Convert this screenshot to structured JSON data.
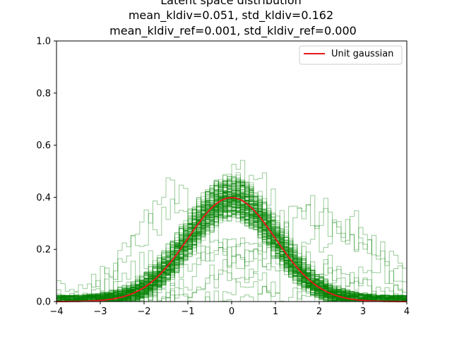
{
  "chart_data": {
    "type": "line",
    "title_lines": [
      "Latent space distribution",
      "mean_kldiv=0.051, std_kldiv=0.162",
      "mean_kldiv_ref=0.001, std_kldiv_ref=0.000"
    ],
    "xlabel": "",
    "ylabel": "",
    "xlim": [
      -4,
      4
    ],
    "ylim": [
      0,
      1.0
    ],
    "x_ticks": [
      "−4",
      "−3",
      "−2",
      "−1",
      "0",
      "1",
      "2",
      "3",
      "4"
    ],
    "y_ticks": [
      "0.0",
      "0.2",
      "0.4",
      "0.6",
      "0.8",
      "1.0"
    ],
    "legend_position": "top-right",
    "colors": {
      "unit_gaussian": "#e41a1c",
      "histograms": "#008000"
    },
    "series": [
      {
        "name": "Unit gaussian",
        "x": [
          -4.0,
          -3.5,
          -3.0,
          -2.5,
          -2.0,
          -1.5,
          -1.0,
          -0.5,
          0.0,
          0.5,
          1.0,
          1.5,
          2.0,
          2.5,
          3.0,
          3.5,
          4.0
        ],
        "y": [
          0.0001,
          0.0009,
          0.0044,
          0.0175,
          0.054,
          0.1295,
          0.242,
          0.352,
          0.399,
          0.352,
          0.242,
          0.1295,
          0.054,
          0.0175,
          0.0044,
          0.0009,
          0.0001
        ]
      }
    ],
    "histogram_bundle": {
      "description_values": "per-latent-dimension step histograms (green, semi-transparent)",
      "dominant": {
        "mean": 0.0,
        "std": 1.0,
        "peak": 0.4
      },
      "outliers": [
        {
          "mean": 2.0,
          "std": 1.0,
          "peak": 0.36
        },
        {
          "mean": 1.8,
          "std": 1.3,
          "peak": 0.32
        },
        {
          "mean": -1.4,
          "std": 0.9,
          "peak": 0.4
        },
        {
          "mean": -1.1,
          "std": 1.0,
          "peak": 0.38
        },
        {
          "mean": 0.4,
          "std": 0.7,
          "peak": 0.52
        },
        {
          "mean": 0.6,
          "std": 1.8,
          "peak": 0.2
        },
        {
          "mean": 2.6,
          "std": 0.9,
          "peak": 0.3
        },
        {
          "mean": -0.3,
          "std": 2.0,
          "peak": 0.2
        },
        {
          "mean": 1.0,
          "std": 1.4,
          "peak": 0.16
        }
      ]
    }
  },
  "legend": {
    "label": "Unit gaussian"
  }
}
